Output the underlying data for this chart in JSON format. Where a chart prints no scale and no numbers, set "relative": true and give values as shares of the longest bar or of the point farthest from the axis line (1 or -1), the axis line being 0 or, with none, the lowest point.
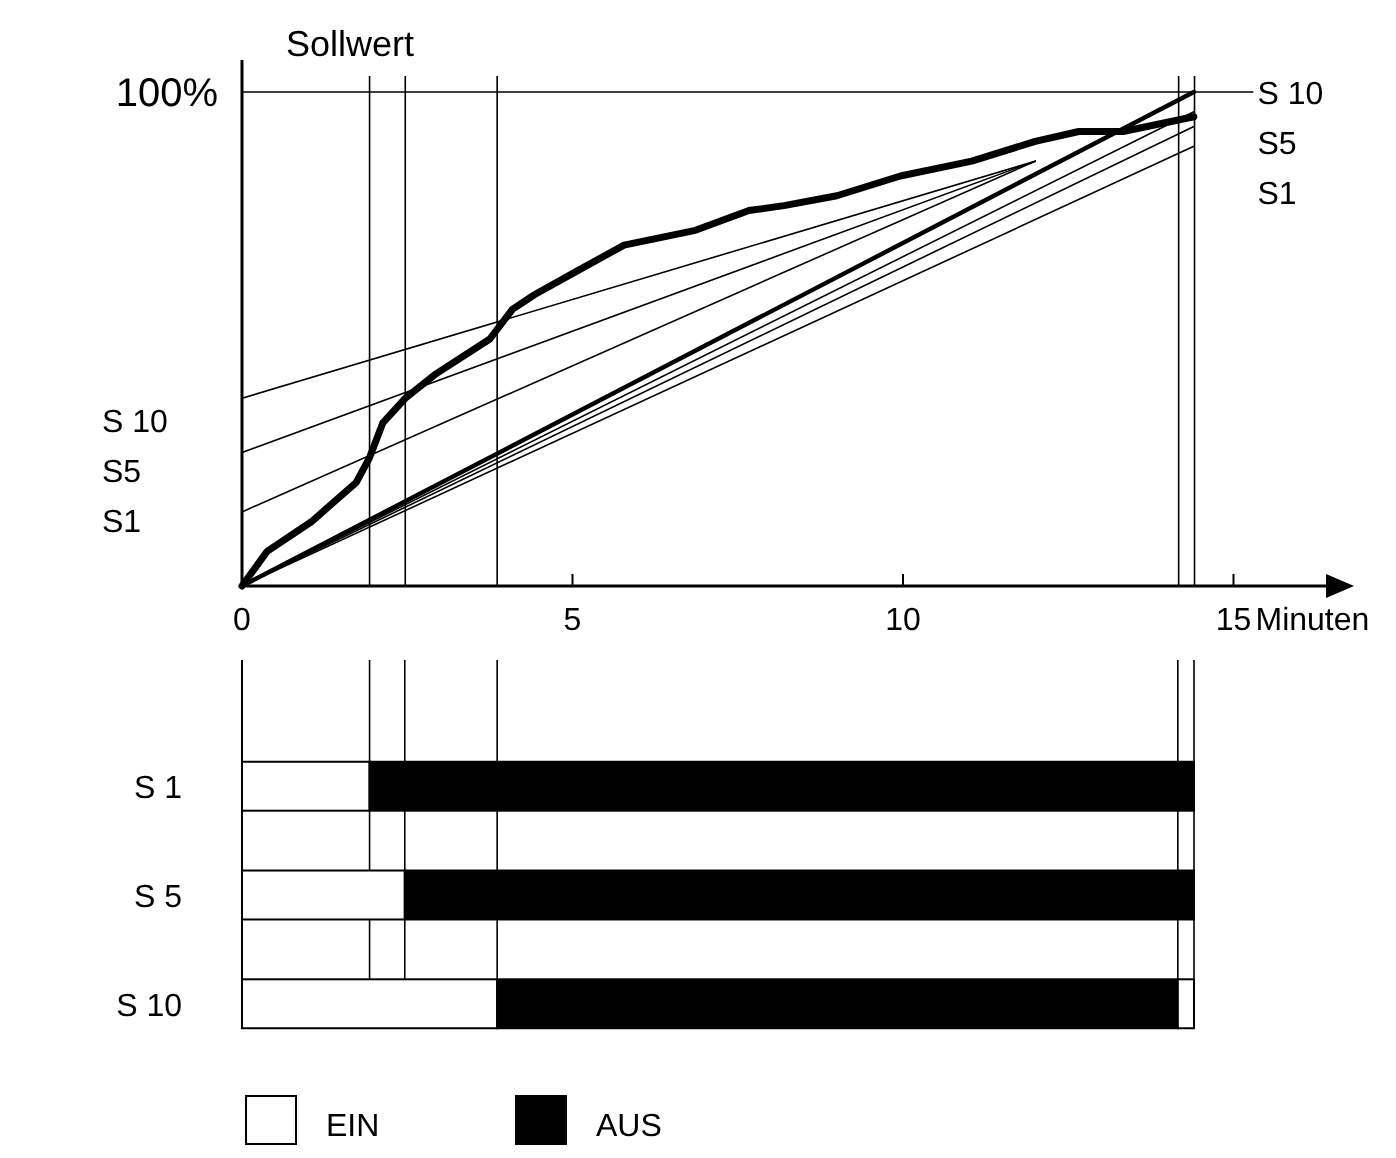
{
  "chart_data": [
    {
      "type": "line",
      "relative": true,
      "ylabel": "Sollwert",
      "xlabel": "Minuten",
      "xlim": [
        0,
        16.4
      ],
      "xticks": [
        0,
        5,
        10,
        15
      ],
      "grid": false,
      "line_style": "solid",
      "tick_labels": "x",
      "series": [
        {
          "color": "#000000",
          "x": [
            0,
            0.38,
            1.05,
            1.73,
            1.93,
            2.13,
            2.47,
            2.94,
            3.75,
            4.09,
            4.43,
            5.1,
            5.78,
            6.86,
            7.67,
            8.2,
            9.0,
            9.96,
            11.04,
            12.0,
            12.66,
            13.33,
            14.4
          ],
          "values": [
            0,
            0.07,
            0.13,
            0.21,
            0.26,
            0.33,
            0.38,
            0.43,
            0.5,
            0.56,
            0.59,
            0.64,
            0.69,
            0.72,
            0.76,
            0.77,
            0.79,
            0.83,
            0.86,
            0.9,
            0.92,
            0.92,
            0.95
          ]
        },
        {
          "color": "#000000",
          "x": [
            0,
            14.4
          ],
          "values": [
            0,
            1.0
          ]
        },
        {
          "color": "#000000",
          "x": [
            0,
            14.4
          ],
          "values": [
            0,
            0.96
          ]
        },
        {
          "color": "#000000",
          "x": [
            0,
            14.4
          ],
          "values": [
            0,
            0.93
          ]
        },
        {
          "color": "#000000",
          "x": [
            0,
            14.4
          ],
          "values": [
            0,
            0.89
          ]
        },
        {
          "color": "#000000",
          "x": [
            0,
            12
          ],
          "values": [
            0.38,
            0.86
          ]
        },
        {
          "color": "#000000",
          "x": [
            0,
            12
          ],
          "values": [
            0.27,
            0.86
          ]
        },
        {
          "color": "#000000",
          "x": [
            0,
            12
          ],
          "values": [
            0.15,
            0.86
          ]
        }
      ],
      "ref_lines": [
        {
          "axis": "y",
          "value": 1,
          "label": "100%"
        },
        {
          "axis": "x",
          "value": 1.93
        },
        {
          "axis": "x",
          "value": 2.47
        },
        {
          "axis": "x",
          "value": 3.86
        },
        {
          "axis": "x",
          "value": 14.17
        },
        {
          "axis": "x",
          "value": 14.41
        }
      ],
      "annotations": [
        "S 10",
        "S5",
        "S1",
        "S 10",
        "S5",
        "S1"
      ]
    },
    {
      "type": "bar",
      "orientation": "horizontal",
      "stacked": true,
      "categories": [
        "S 1",
        "S 5",
        "S 10"
      ],
      "relative": true,
      "tick_labels": "y",
      "legend": "bottom",
      "series": [
        {
          "name": "EIN",
          "color": "#ffffff",
          "values": [
            0.134,
            0.171,
            0.268
          ]
        },
        {
          "name": "AUS",
          "color": "#000000",
          "values": [
            0.866,
            0.829,
            0.715
          ]
        },
        {
          "color": "#ffffff",
          "values": [
            null,
            null,
            0.017
          ]
        }
      ],
      "ref_lines": [
        {
          "axis": "x",
          "value": 0.134
        },
        {
          "axis": "x",
          "value": 0.171
        },
        {
          "axis": "x",
          "value": 0.268
        },
        {
          "axis": "x",
          "value": 0.983
        },
        {
          "axis": "x",
          "value": 1.0
        }
      ]
    }
  ]
}
